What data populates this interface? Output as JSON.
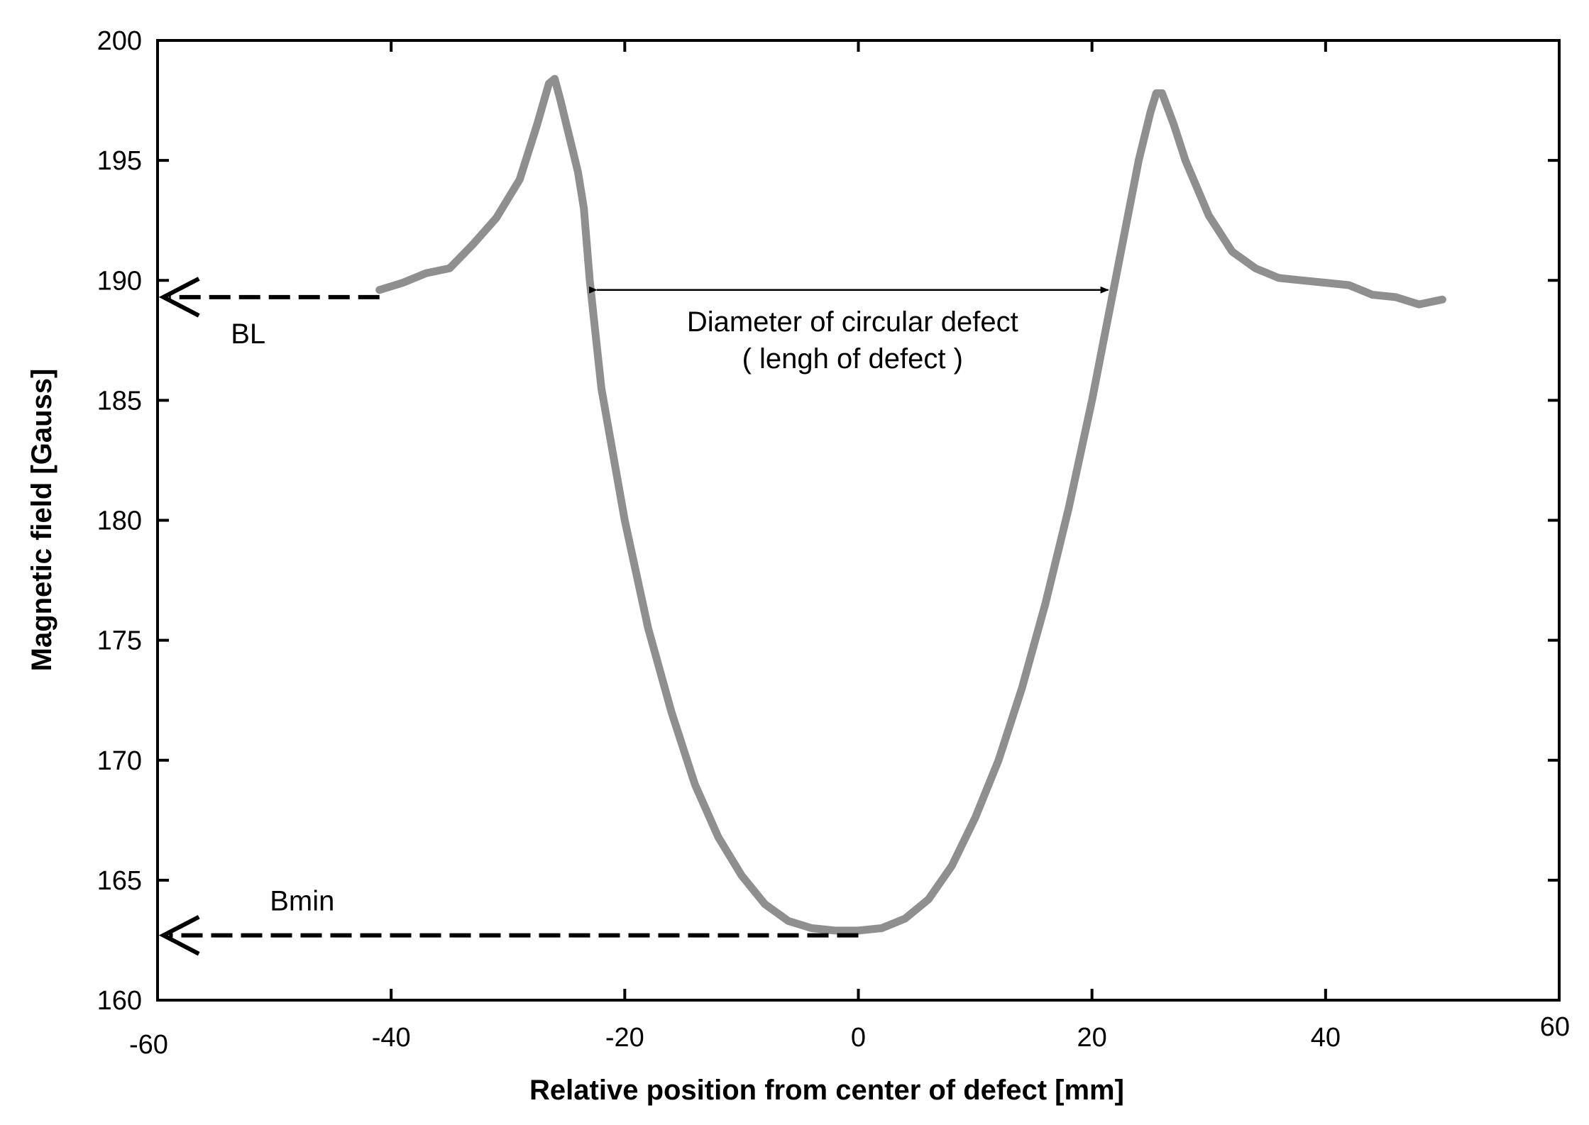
{
  "chart_data": {
    "type": "line",
    "title": "",
    "xlabel": "Relative position from center of defect [mm]",
    "ylabel": "Magnetic field [Gauss]",
    "xlim": [
      -60,
      60
    ],
    "ylim": [
      160,
      200
    ],
    "x_ticks": [
      "-60",
      "-40",
      "-20",
      "0",
      "20",
      "40",
      "60"
    ],
    "y_ticks": [
      "160",
      "165",
      "170",
      "175",
      "180",
      "185",
      "190",
      "195",
      "200"
    ],
    "grid": false,
    "legend": "none",
    "line_color": "#8f8f8f",
    "series": [
      {
        "x": [
          -41,
          -39,
          -37,
          -35,
          -33,
          -31,
          -29,
          -27.5,
          -26.5,
          -26,
          -25.5,
          -25,
          -24.5,
          -24,
          -23.5,
          -23,
          -22,
          -20,
          -18,
          -16,
          -14,
          -12,
          -10,
          -8,
          -6,
          -4,
          -2,
          0,
          2,
          4,
          6,
          8,
          10,
          12,
          14,
          16,
          18,
          20,
          21,
          22,
          23,
          24,
          25,
          25.5,
          26,
          27,
          28,
          30,
          32,
          34,
          36,
          38,
          40,
          42,
          44,
          46,
          48,
          50
        ],
        "y": [
          189.6,
          189.9,
          190.3,
          190.5,
          191.5,
          192.6,
          194.2,
          196.5,
          198.2,
          198.4,
          197.5,
          196.5,
          195.5,
          194.5,
          193.0,
          190.0,
          185.5,
          180.0,
          175.5,
          172.0,
          169.0,
          166.8,
          165.2,
          164.0,
          163.3,
          163.0,
          162.9,
          162.9,
          163.0,
          163.4,
          164.2,
          165.6,
          167.6,
          170.0,
          173.0,
          176.5,
          180.5,
          185.0,
          187.5,
          190.0,
          192.5,
          195.0,
          197.0,
          197.8,
          197.8,
          196.5,
          195.0,
          192.7,
          191.2,
          190.5,
          190.1,
          190.0,
          189.9,
          189.8,
          189.4,
          189.3,
          189.0,
          189.2
        ]
      }
    ],
    "annotations": {
      "diameter_label_1": "Diameter of circular defect",
      "diameter_label_2": "( lengh of defect )",
      "diameter_span": {
        "x1": -23,
        "x2": 22,
        "y": 189.6
      },
      "bl_label": "BL",
      "bl_arrow": {
        "from_x": -41,
        "to_x": -59.5,
        "y": 189.3
      },
      "bmin_label": "Bmin",
      "bmin_arrow": {
        "from_x": 0,
        "to_x": -59.5,
        "y": 162.7
      }
    }
  }
}
